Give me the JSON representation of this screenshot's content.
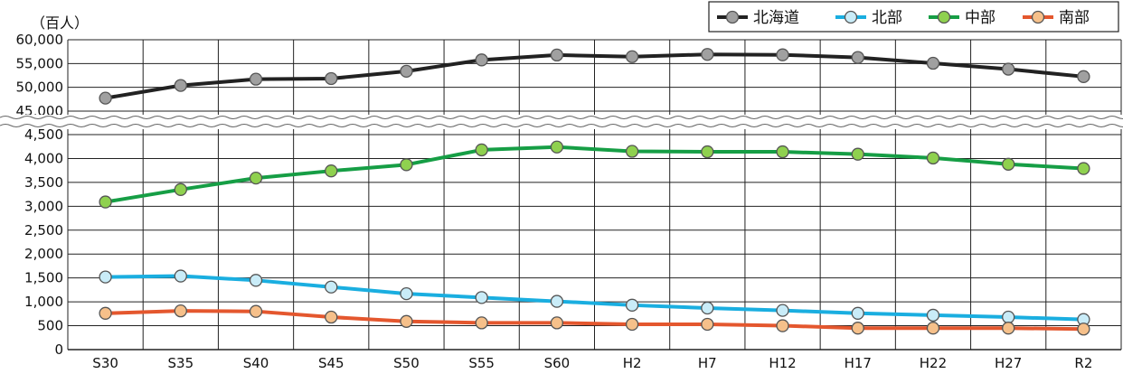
{
  "chart_data": {
    "type": "line",
    "unit_label": "（百人）",
    "categories": [
      "S30",
      "S35",
      "S40",
      "S45",
      "S50",
      "S55",
      "S60",
      "H2",
      "H7",
      "H12",
      "H17",
      "H22",
      "H27",
      "R2"
    ],
    "y_axis_upper": {
      "range": [
        45000,
        60000
      ],
      "ticks": [
        "45,000",
        "50,000",
        "55,000",
        "60,000"
      ]
    },
    "y_axis_lower": {
      "range": [
        0,
        4500
      ],
      "ticks": [
        "0",
        "500",
        "1,000",
        "1,500",
        "2,000",
        "2,500",
        "3,000",
        "3,500",
        "4,000",
        "4,500"
      ]
    },
    "axis_break": true,
    "grid": true,
    "legend_position": "top-right",
    "series": [
      {
        "name": "北海道",
        "axis": "upper",
        "color": "#222222",
        "marker": "#a0a0a0",
        "values": [
          47730,
          50390,
          51710,
          51840,
          53380,
          55760,
          56790,
          56440,
          56920,
          56830,
          56280,
          55060,
          53820,
          52250
        ]
      },
      {
        "name": "北部",
        "axis": "lower",
        "color": "#1aaee0",
        "marker": "#c9ecf8",
        "values": [
          1520,
          1540,
          1450,
          1310,
          1170,
          1090,
          1010,
          930,
          870,
          820,
          760,
          720,
          680,
          630
        ]
      },
      {
        "name": "中部",
        "axis": "lower",
        "color": "#169e45",
        "marker": "#8fd14f",
        "values": [
          3090,
          3350,
          3590,
          3740,
          3870,
          4180,
          4240,
          4150,
          4140,
          4140,
          4090,
          4010,
          3880,
          3790
        ]
      },
      {
        "name": "南部",
        "axis": "lower",
        "color": "#e4572e",
        "marker": "#f6c08a",
        "values": [
          760,
          810,
          800,
          680,
          590,
          560,
          560,
          530,
          530,
          500,
          450,
          450,
          450,
          430
        ]
      }
    ]
  }
}
